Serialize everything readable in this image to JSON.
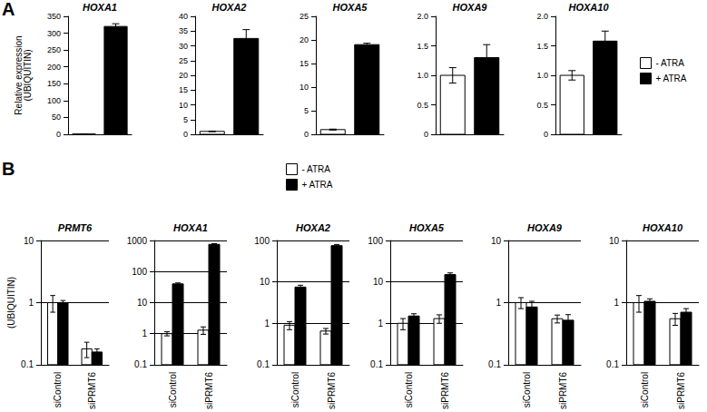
{
  "panel_labels": [
    "A",
    "B"
  ],
  "chart_data": [
    {
      "type": "bar",
      "title": "HOXA1",
      "ylabel": "Relative expression\n(UBIQUITIN)",
      "categories": [
        null
      ],
      "series": [
        {
          "name": "- ATRA",
          "color": "#ffffff",
          "values": [
            1
          ],
          "errors": [
            0.2
          ]
        },
        {
          "name": "+ ATRA",
          "color": "#000000",
          "values": [
            320
          ],
          "errors": [
            8
          ]
        }
      ],
      "ylim": [
        0,
        350
      ],
      "yticks": [
        0,
        50,
        100,
        150,
        200,
        250,
        300,
        350
      ],
      "grid": false,
      "tick_labels": "y"
    },
    {
      "type": "bar",
      "title": "HOXA2",
      "categories": [
        null
      ],
      "series": [
        {
          "name": "- ATRA",
          "color": "#ffffff",
          "values": [
            1
          ],
          "errors": [
            0.1
          ]
        },
        {
          "name": "+ ATRA",
          "color": "#000000",
          "values": [
            32.5
          ],
          "errors": [
            3
          ]
        }
      ],
      "ylim": [
        0,
        40
      ],
      "yticks": [
        0,
        5,
        10,
        15,
        20,
        25,
        30,
        35,
        40
      ],
      "grid": false,
      "tick_labels": "y"
    },
    {
      "type": "bar",
      "title": "HOXA5",
      "categories": [
        null
      ],
      "series": [
        {
          "name": "- ATRA",
          "color": "#ffffff",
          "values": [
            1
          ],
          "errors": [
            0.1
          ]
        },
        {
          "name": "+ ATRA",
          "color": "#000000",
          "values": [
            19
          ],
          "errors": [
            0.3
          ]
        }
      ],
      "ylim": [
        0,
        25
      ],
      "yticks": [
        0,
        5,
        10,
        15,
        20,
        25
      ],
      "grid": false,
      "tick_labels": "y"
    },
    {
      "type": "bar",
      "title": "HOXA9",
      "categories": [
        null
      ],
      "series": [
        {
          "name": "- ATRA",
          "color": "#ffffff",
          "values": [
            1.0
          ],
          "errors": [
            0.13
          ]
        },
        {
          "name": "+ ATRA",
          "color": "#000000",
          "values": [
            1.3
          ],
          "errors": [
            0.22
          ]
        }
      ],
      "ylim": [
        0,
        2
      ],
      "yticks": [
        0,
        0.5,
        {
          "value": 1,
          "label": "1.0"
        },
        1.5,
        {
          "value": 2,
          "label": "2.0"
        }
      ],
      "grid": false,
      "tick_labels": "y"
    },
    {
      "type": "bar",
      "title": "HOXA10",
      "categories": [
        null
      ],
      "legend": "right",
      "series": [
        {
          "name": "- ATRA",
          "color": "#ffffff",
          "values": [
            1.0
          ],
          "errors": [
            0.08
          ]
        },
        {
          "name": "+ ATRA",
          "color": "#000000",
          "values": [
            1.58
          ],
          "errors": [
            0.17
          ]
        }
      ],
      "ylim": [
        0,
        2
      ],
      "yticks": [
        0,
        0.5,
        {
          "value": 1,
          "label": "1.0"
        },
        1.5,
        {
          "value": 2,
          "label": "2.0"
        }
      ],
      "grid": false,
      "tick_labels": "y"
    },
    {
      "type": "bar",
      "title": "PRMT6",
      "ylabel": "(UBIQUITIN)",
      "categories": [
        "siControl",
        "siPRMT6"
      ],
      "log": true,
      "series": [
        {
          "name": "- ATRA",
          "color": "#ffffff",
          "values": [
            1.0,
            0.18
          ],
          "errors": [
            0.3,
            0.05
          ]
        },
        {
          "name": "+ ATRA",
          "color": "#000000",
          "values": [
            1.0,
            0.16
          ],
          "errors": [
            0.08,
            0.02
          ]
        }
      ],
      "ylim": [
        0.1,
        10
      ],
      "yticks": [
        0.1,
        1,
        10
      ],
      "grid": true
    },
    {
      "type": "bar",
      "title": "HOXA1",
      "categories": [
        "siControl",
        "siPRMT6"
      ],
      "log": true,
      "series": [
        {
          "name": "- ATRA",
          "color": "#ffffff",
          "values": [
            1.0,
            1.3
          ],
          "errors": [
            0.15,
            0.35
          ]
        },
        {
          "name": "+ ATRA",
          "color": "#000000",
          "values": [
            40,
            750
          ],
          "errors": [
            3,
            40
          ]
        }
      ],
      "ylim": [
        0.1,
        1000
      ],
      "yticks": [
        0.1,
        1,
        10,
        100,
        1000
      ],
      "grid": true
    },
    {
      "type": "bar",
      "title": "HOXA2",
      "categories": [
        "siControl",
        "siPRMT6"
      ],
      "log": true,
      "legend": "top",
      "series": [
        {
          "name": "- ATRA",
          "color": "#ffffff",
          "values": [
            0.9,
            0.65
          ],
          "errors": [
            0.2,
            0.1
          ]
        },
        {
          "name": "+ ATRA",
          "color": "#000000",
          "values": [
            7.5,
            75
          ],
          "errors": [
            0.8,
            5
          ]
        }
      ],
      "ylim": [
        0.1,
        100
      ],
      "yticks": [
        0.1,
        1,
        10,
        100
      ],
      "grid": true
    },
    {
      "type": "bar",
      "title": "HOXA5",
      "categories": [
        "siControl",
        "siPRMT6"
      ],
      "log": true,
      "series": [
        {
          "name": "- ATRA",
          "color": "#ffffff",
          "values": [
            1.0,
            1.3
          ],
          "errors": [
            0.3,
            0.3
          ]
        },
        {
          "name": "+ ATRA",
          "color": "#000000",
          "values": [
            1.5,
            15
          ],
          "errors": [
            0.2,
            1.5
          ]
        }
      ],
      "ylim": [
        0.1,
        100
      ],
      "yticks": [
        0.1,
        1,
        10,
        100
      ],
      "grid": true
    },
    {
      "type": "bar",
      "title": "HOXA9",
      "categories": [
        "siControl",
        "siPRMT6"
      ],
      "log": true,
      "series": [
        {
          "name": "- ATRA",
          "color": "#ffffff",
          "values": [
            1.0,
            0.55
          ],
          "errors": [
            0.2,
            0.08
          ]
        },
        {
          "name": "+ ATRA",
          "color": "#000000",
          "values": [
            0.85,
            0.52
          ],
          "errors": [
            0.2,
            0.12
          ]
        }
      ],
      "ylim": [
        0.1,
        10
      ],
      "yticks": [
        0.1,
        1,
        10
      ],
      "grid": true
    },
    {
      "type": "bar",
      "title": "HOXA10",
      "categories": [
        "siControl",
        "siPRMT6"
      ],
      "log": true,
      "series": [
        {
          "name": "- ATRA",
          "color": "#ffffff",
          "values": [
            1.0,
            0.55
          ],
          "errors": [
            0.3,
            0.12
          ]
        },
        {
          "name": "+ ATRA",
          "color": "#000000",
          "values": [
            1.05,
            0.7
          ],
          "errors": [
            0.1,
            0.1
          ]
        }
      ],
      "ylim": [
        0.1,
        10
      ],
      "yticks": [
        0.1,
        1,
        10
      ],
      "grid": true
    }
  ]
}
